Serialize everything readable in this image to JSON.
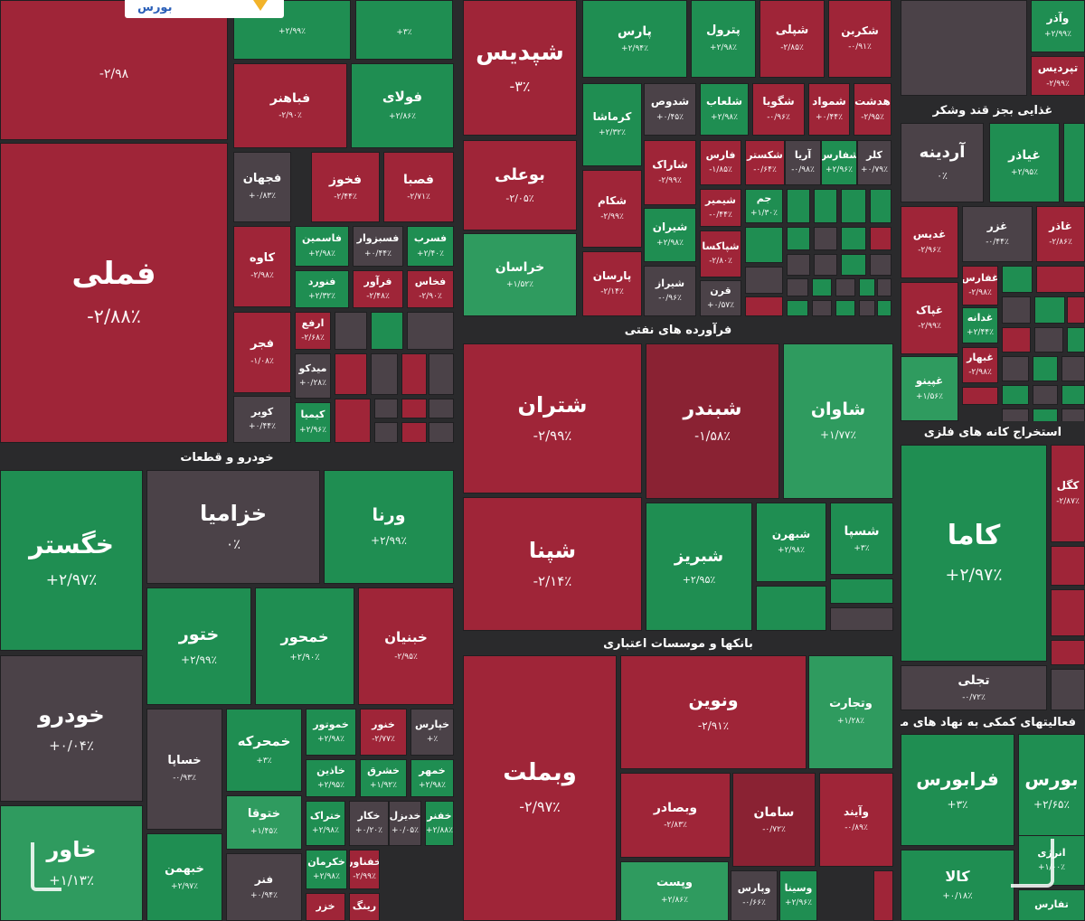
{
  "logo": {
    "text": "بورس",
    "accent": "#f2b32a"
  },
  "colors": {
    "up": "#1f8e52",
    "up_light": "#2f9b5f",
    "down": "#9f2538",
    "down_dark": "#8a2233",
    "neutral": "#4b4248",
    "neutral_dark": "#3f3a40",
    "bg": "#2a2a2c"
  },
  "chart_data": {
    "type": "treemap",
    "sectors": [
      {
        "name": "خودرو و قطعات"
      },
      {
        "name": "فرآورده های نفتی"
      },
      {
        "name": "بانکها و موسسات اعتباری"
      },
      {
        "name": "غذایی بجز قند وشکر"
      },
      {
        "name": "استخراج کانه های فلزی"
      },
      {
        "name": "فعالیتهای کمکی به نهاد های مالی واسط"
      }
    ],
    "tiles": [
      {
        "symbol": "فملی",
        "change": "-۲/۸۸٪",
        "value": -2.88
      },
      {
        "symbol": "",
        "change": "-۲/۹۸",
        "value": -2.98
      },
      {
        "symbol": "",
        "change": "+۲/۹۹٪",
        "value": 2.99
      },
      {
        "symbol": "",
        "change": "+۳٪",
        "value": 3
      },
      {
        "symbol": "فباهنر",
        "change": "-۲/۹۰٪",
        "value": -2.9
      },
      {
        "symbol": "فولای",
        "change": "+۲/۸۶٪",
        "value": 2.86
      },
      {
        "symbol": "فجهان",
        "change": "+۰/۸۳٪",
        "value": 0.83
      },
      {
        "symbol": "فخوز",
        "change": "-۲/۴۴٪",
        "value": -2.44
      },
      {
        "symbol": "فصبا",
        "change": "-۲/۷۱٪",
        "value": -2.71
      },
      {
        "symbol": "کاوه",
        "change": "-۲/۹۸٪",
        "value": -2.98
      },
      {
        "symbol": "فاسمین",
        "change": "+۲/۹۸٪",
        "value": 2.98
      },
      {
        "symbol": "فسبزوار",
        "change": "+۰/۴۴٪",
        "value": 0.44
      },
      {
        "symbol": "فسرب",
        "change": "+۲/۴۰٪",
        "value": 2.4
      },
      {
        "symbol": "فنورد",
        "change": "+۲/۳۲٪",
        "value": 2.32
      },
      {
        "symbol": "فرآور",
        "change": "-۲/۴۸٪",
        "value": -2.48
      },
      {
        "symbol": "فخاس",
        "change": "-۲/۹۰٪",
        "value": -2.9
      },
      {
        "symbol": "فجر",
        "change": "-۱/۰۸٪",
        "value": -1.08
      },
      {
        "symbol": "ارفع",
        "change": "-۲/۶۸٪",
        "value": -2.68
      },
      {
        "symbol": "میدکو",
        "change": "+۰/۲۸٪",
        "value": 0.28
      },
      {
        "symbol": "کویر",
        "change": "+۰/۴۴٪",
        "value": 0.44
      },
      {
        "symbol": "کیمیا",
        "change": "+۲/۹۶٪",
        "value": 2.96
      },
      {
        "symbol": "شپدیس",
        "change": "-۳٪",
        "value": -3
      },
      {
        "symbol": "پارس",
        "change": "+۲/۹۴٪",
        "value": 2.94
      },
      {
        "symbol": "پترول",
        "change": "+۲/۹۸٪",
        "value": 2.98
      },
      {
        "symbol": "شپلی",
        "change": "-۲/۸۵٪",
        "value": -2.85
      },
      {
        "symbol": "شکربن",
        "change": "-۰/۹۱٪",
        "value": -0.91
      },
      {
        "symbol": "کرماشا",
        "change": "+۲/۳۲٪",
        "value": 2.32
      },
      {
        "symbol": "شدوص",
        "change": "+۰/۴۵٪",
        "value": 0.45
      },
      {
        "symbol": "شلعاب",
        "change": "+۲/۹۸٪",
        "value": 2.98
      },
      {
        "symbol": "شگویا",
        "change": "-۰/۹۶٪",
        "value": -0.96
      },
      {
        "symbol": "شمواد",
        "change": "+۰/۴۴٪",
        "value": 0.44
      },
      {
        "symbol": "هدشت",
        "change": "-۲/۹۵٪",
        "value": -2.95
      },
      {
        "symbol": "بوعلی",
        "change": "-۲/۰۵٪",
        "value": -2.05
      },
      {
        "symbol": "شاراک",
        "change": "-۲/۹۹٪",
        "value": -2.99
      },
      {
        "symbol": "فارس",
        "change": "-۱/۸۵٪",
        "value": -1.85
      },
      {
        "symbol": "شکستر",
        "change": "-۰/۶۴٪",
        "value": -0.64
      },
      {
        "symbol": "آریا",
        "change": "-۰/۹۸٪",
        "value": -0.98
      },
      {
        "symbol": "شفارس",
        "change": "+۲/۹۶٪",
        "value": 2.96
      },
      {
        "symbol": "کلر",
        "change": "+۰/۷۹٪",
        "value": 0.79
      },
      {
        "symbol": "شکام",
        "change": "-۲/۹۹٪",
        "value": -2.99
      },
      {
        "symbol": "شیران",
        "change": "+۲/۹۸٪",
        "value": 2.98
      },
      {
        "symbol": "شیمیر",
        "change": "-۰/۴۴٪",
        "value": -0.44
      },
      {
        "symbol": "جم",
        "change": "+۱/۳۰٪",
        "value": 1.3
      },
      {
        "symbol": "خراسان",
        "change": "+۱/۵۲٪",
        "value": 1.52
      },
      {
        "symbol": "پارسان",
        "change": "-۲/۱۴٪",
        "value": -2.14
      },
      {
        "symbol": "شیراز",
        "change": "-۰/۹۶٪",
        "value": -0.96
      },
      {
        "symbol": "شپاکسا",
        "change": "-۲/۸۰٪",
        "value": -2.8
      },
      {
        "symbol": "قرن",
        "change": "+۰/۵۷٪",
        "value": 0.57
      },
      {
        "symbol": "شتران",
        "change": "-۲/۹۹٪",
        "value": -2.99
      },
      {
        "symbol": "شبندر",
        "change": "-۱/۵۸٪",
        "value": -1.58
      },
      {
        "symbol": "شاوان",
        "change": "+۱/۷۷٪",
        "value": 1.77
      },
      {
        "symbol": "شپنا",
        "change": "-۲/۱۴٪",
        "value": -2.14
      },
      {
        "symbol": "شبریز",
        "change": "+۲/۹۵٪",
        "value": 2.95
      },
      {
        "symbol": "شبهرن",
        "change": "+۲/۹۸٪",
        "value": 2.98
      },
      {
        "symbol": "شسپا",
        "change": "+۳٪",
        "value": 3
      },
      {
        "symbol": "وبملت",
        "change": "-۲/۹۷٪",
        "value": -2.97
      },
      {
        "symbol": "ونوین",
        "change": "-۲/۹۱٪",
        "value": -2.91
      },
      {
        "symbol": "وتجارت",
        "change": "+۱/۲۸٪",
        "value": 1.28
      },
      {
        "symbol": "وبصادر",
        "change": "-۲/۸۳٪",
        "value": -2.83
      },
      {
        "symbol": "سامان",
        "change": "-۰/۷۲٪",
        "value": -0.72
      },
      {
        "symbol": "وآیند",
        "change": "-۰/۸۹٪",
        "value": -0.89
      },
      {
        "symbol": "وپست",
        "change": "+۲/۸۶٪",
        "value": 2.86
      },
      {
        "symbol": "وپارس",
        "change": "-۰/۶۶٪",
        "value": -0.66
      },
      {
        "symbol": "وسینا",
        "change": "+۲/۹۶٪",
        "value": 2.96
      },
      {
        "symbol": "خگستر",
        "change": "+۲/۹۷٪",
        "value": 2.97
      },
      {
        "symbol": "خزامیا",
        "change": "۰٪",
        "value": 0
      },
      {
        "symbol": "ورنا",
        "change": "+۲/۹۹٪",
        "value": 2.99
      },
      {
        "symbol": "ختور",
        "change": "+۲/۹۹٪",
        "value": 2.99
      },
      {
        "symbol": "خمحور",
        "change": "+۲/۹۰٪",
        "value": 2.9
      },
      {
        "symbol": "خبنیان",
        "change": "-۲/۹۵٪",
        "value": -2.95
      },
      {
        "symbol": "خودرو",
        "change": "+۰/۰۴٪",
        "value": 0.04
      },
      {
        "symbol": "خساپا",
        "change": "-۰/۹۳٪",
        "value": -0.93
      },
      {
        "symbol": "خمحرکه",
        "change": "+۳٪",
        "value": 3
      },
      {
        "symbol": "خموتور",
        "change": "+۲/۹۸٪",
        "value": 2.98
      },
      {
        "symbol": "خنور",
        "change": "-۲/۷۷٪",
        "value": -2.77
      },
      {
        "symbol": "خپارس",
        "change": "+٪",
        "value": 0
      },
      {
        "symbol": "خاذین",
        "change": "+۲/۹۵٪",
        "value": 2.95
      },
      {
        "symbol": "خشرق",
        "change": "+۱/۹۲٪",
        "value": 1.92
      },
      {
        "symbol": "خمهر",
        "change": "+۲/۹۸٪",
        "value": 2.98
      },
      {
        "symbol": "خاور",
        "change": "+۱/۱۳٪",
        "value": 1.13
      },
      {
        "symbol": "ختوقا",
        "change": "+۱/۴۵٪",
        "value": 1.45
      },
      {
        "symbol": "ختراک",
        "change": "+۲/۹۸٪",
        "value": 2.98
      },
      {
        "symbol": "خکار",
        "change": "+۰/۲۰٪",
        "value": 0.2
      },
      {
        "symbol": "خدیزل",
        "change": "+۰/۰۵٪",
        "value": 0.05
      },
      {
        "symbol": "خفنر",
        "change": "+۲/۸۸٪",
        "value": 2.88
      },
      {
        "symbol": "خبهمن",
        "change": "+۲/۹۷٪",
        "value": 2.97
      },
      {
        "symbol": "خکرمان",
        "change": "+۲/۹۸٪",
        "value": 2.98
      },
      {
        "symbol": "فنر",
        "change": "+۰/۹۴٪",
        "value": 0.94
      },
      {
        "symbol": "خفناور",
        "change": "-۲/۹۹٪",
        "value": -2.99
      },
      {
        "symbol": "خزر",
        "change": "",
        "value": null
      },
      {
        "symbol": "رینگ",
        "change": "",
        "value": null
      },
      {
        "symbol": "وآذر",
        "change": "+۲/۹۹٪",
        "value": 2.99
      },
      {
        "symbol": "تپردیس",
        "change": "-۲/۹۹٪",
        "value": -2.99
      },
      {
        "symbol": "آردینه",
        "change": "۰٪",
        "value": 0
      },
      {
        "symbol": "غیاذر",
        "change": "+۲/۹۵٪",
        "value": 2.95
      },
      {
        "symbol": "غدیس",
        "change": "-۲/۹۶٪",
        "value": -2.96
      },
      {
        "symbol": "غزر",
        "change": "-۰/۴۴٪",
        "value": -0.44
      },
      {
        "symbol": "غاذر",
        "change": "-۲/۸۶٪",
        "value": -2.86
      },
      {
        "symbol": "غفارس",
        "change": "-۲/۹۸٪",
        "value": -2.98
      },
      {
        "symbol": "غپاک",
        "change": "-۲/۹۹٪",
        "value": -2.99
      },
      {
        "symbol": "غدانه",
        "change": "+۲/۴۴٪",
        "value": 2.44
      },
      {
        "symbol": "غبهار",
        "change": "-۲/۹۸٪",
        "value": -2.98
      },
      {
        "symbol": "غپینو",
        "change": "+۱/۵۶٪",
        "value": 1.56
      },
      {
        "symbol": "کاما",
        "change": "+۲/۹۷٪",
        "value": 2.97
      },
      {
        "symbol": "کگل",
        "change": "-۲/۸۷٪",
        "value": -2.87
      },
      {
        "symbol": "تجلی",
        "change": "-۰/۷۲٪",
        "value": -0.72
      },
      {
        "symbol": "فرابورس",
        "change": "+۳٪",
        "value": 3
      },
      {
        "symbol": "بورس",
        "change": "+۲/۶۵٪",
        "value": 2.65
      },
      {
        "symbol": "کالا",
        "change": "+۰/۱۸٪",
        "value": 0.18
      },
      {
        "symbol": "انرژی",
        "change": "+۱/۰۰٪",
        "value": 1.0
      },
      {
        "symbol": "تفارس",
        "change": "",
        "value": null
      }
    ]
  }
}
